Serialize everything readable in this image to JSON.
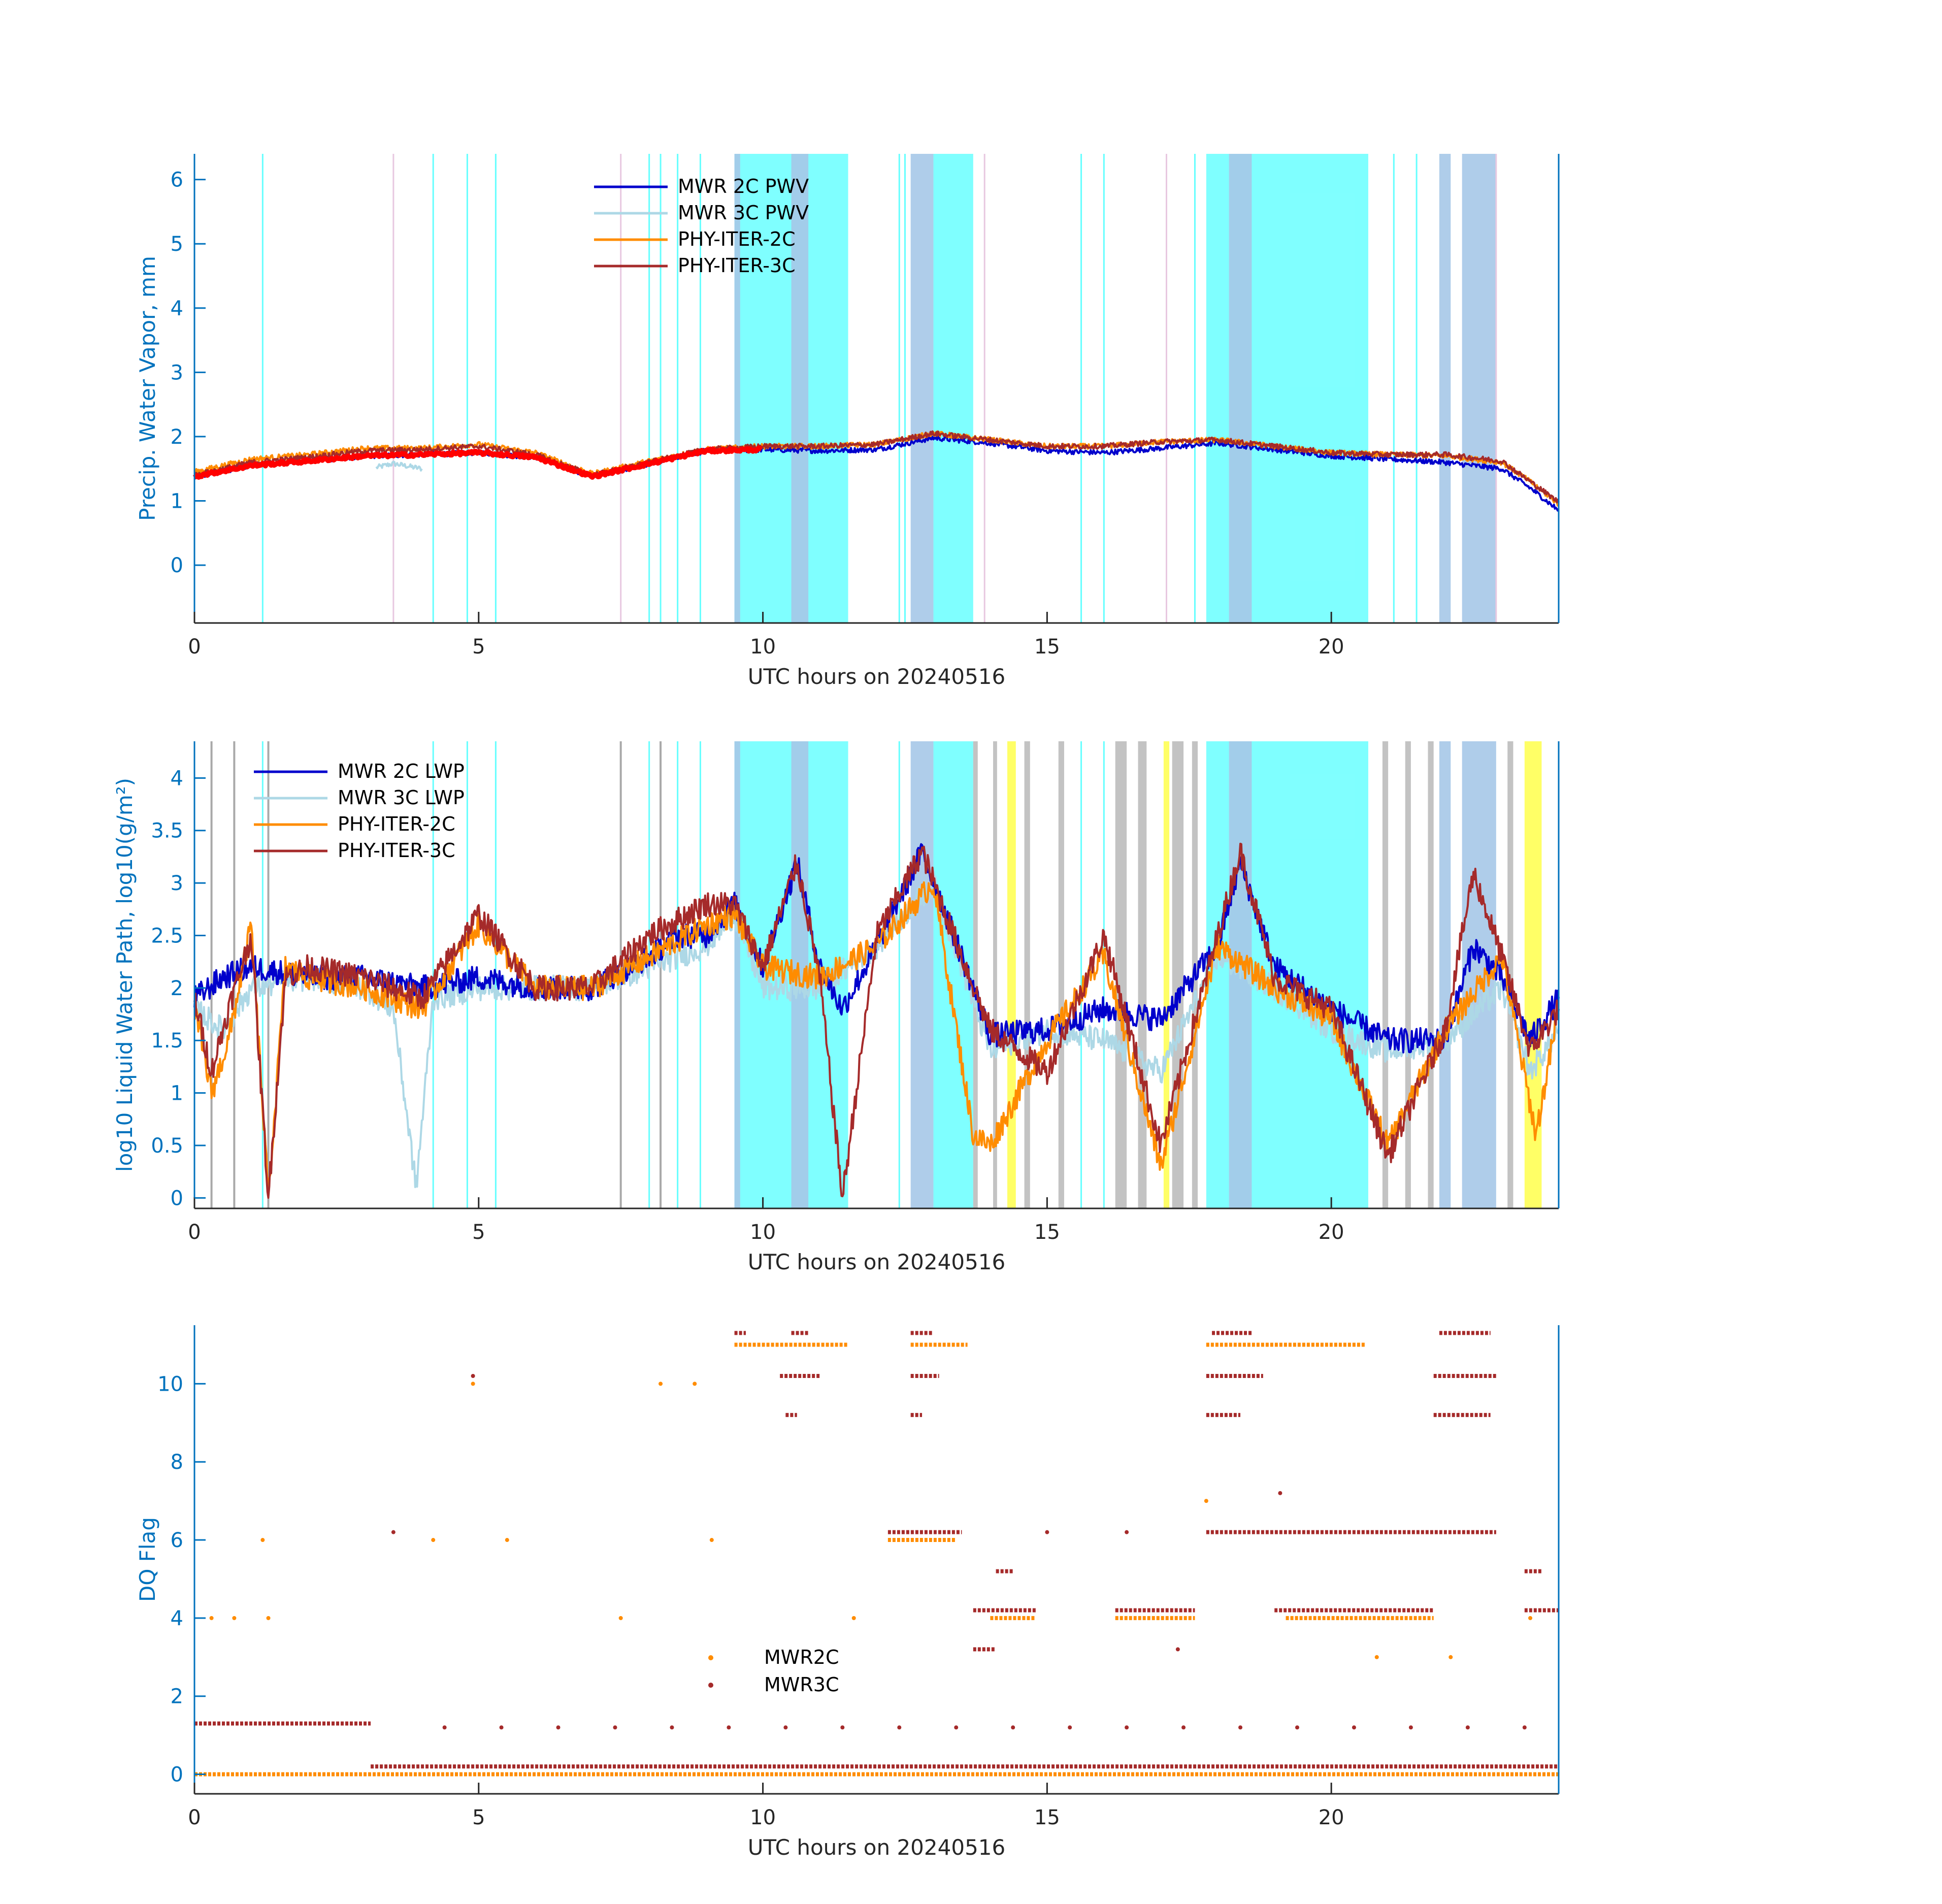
{
  "colors": {
    "axis": "#0072BD",
    "xaxis_text": "#262626",
    "mwr2c": "#0000CC",
    "mwr3c": "#ADD8E6",
    "phy2c": "#FF8C00",
    "phy3c": "#A52A2A",
    "pwv_red": "#FF0000",
    "cyan": "#00FFFF",
    "lightblue": "#A6C8E8",
    "gray": "#A9A9A9",
    "yellow": "#FFFF00",
    "pink": "#E8C8E0"
  },
  "chart_data": [
    {
      "type": "line",
      "xlabel": "UTC hours on 20240516",
      "ylabel": "Precip. Water Vapor, mm",
      "xlim": [
        0,
        24
      ],
      "ylim": [
        -0.9,
        6.4
      ],
      "xticks": [
        0,
        5,
        10,
        15,
        20
      ],
      "yticks": [
        0,
        1,
        2,
        3,
        4,
        5,
        6
      ],
      "legend_position": "top-center",
      "series": [
        {
          "name": "MWR 2C PWV",
          "color_key": "mwr2c",
          "x": [
            0,
            1,
            2,
            3,
            4,
            5,
            6,
            7,
            8,
            9,
            10,
            11,
            12,
            13,
            14,
            15,
            16,
            17,
            18,
            19,
            20,
            21,
            22,
            23,
            23.5,
            24
          ],
          "y": [
            1.38,
            1.55,
            1.62,
            1.7,
            1.72,
            1.75,
            1.68,
            1.38,
            1.58,
            1.78,
            1.8,
            1.78,
            1.8,
            1.98,
            1.9,
            1.78,
            1.75,
            1.82,
            1.9,
            1.8,
            1.7,
            1.65,
            1.6,
            1.5,
            1.2,
            0.85
          ]
        },
        {
          "name": "MWR 3C PWV",
          "color_key": "mwr3c",
          "x": [
            3.2,
            3.5,
            4.0
          ],
          "y": [
            1.52,
            1.58,
            1.5
          ]
        },
        {
          "name": "PHY-ITER-2C",
          "color_key": "phy2c",
          "x": [
            0,
            1,
            2,
            3,
            4,
            5,
            6,
            7,
            8,
            9,
            10,
            11,
            12,
            13,
            14,
            15,
            16,
            17,
            18,
            19,
            20,
            21,
            22,
            23,
            23.5,
            24
          ],
          "y": [
            1.45,
            1.65,
            1.72,
            1.82,
            1.82,
            1.88,
            1.75,
            1.42,
            1.62,
            1.8,
            1.85,
            1.85,
            1.88,
            2.05,
            1.95,
            1.85,
            1.85,
            1.92,
            1.95,
            1.85,
            1.75,
            1.72,
            1.7,
            1.6,
            1.3,
            0.95
          ]
        },
        {
          "name": "PHY-ITER-3C",
          "color_key": "phy3c",
          "x": [
            0,
            1,
            2,
            3,
            4,
            5,
            6,
            7,
            8,
            9,
            10,
            11,
            12,
            13,
            14,
            15,
            16,
            17,
            18,
            19,
            20,
            21,
            22,
            23,
            23.5,
            24
          ],
          "y": [
            1.4,
            1.6,
            1.68,
            1.78,
            1.8,
            1.85,
            1.72,
            1.4,
            1.6,
            1.8,
            1.85,
            1.85,
            1.88,
            2.05,
            1.95,
            1.85,
            1.85,
            1.92,
            1.95,
            1.85,
            1.75,
            1.72,
            1.72,
            1.62,
            1.3,
            0.98
          ]
        }
      ],
      "bands": {
        "cyan": [
          [
            9.5,
            11.5
          ],
          [
            13.0,
            13.7
          ],
          [
            17.8,
            20.65
          ]
        ],
        "lightblue": [
          [
            9.5,
            9.6
          ],
          [
            10.5,
            10.8
          ],
          [
            12.6,
            13.0
          ],
          [
            18.2,
            18.6
          ],
          [
            21.9,
            22.1
          ],
          [
            22.3,
            22.9
          ]
        ],
        "thin_cyan": [
          1.2,
          4.2,
          4.8,
          5.3,
          8.0,
          8.2,
          8.5,
          8.9,
          12.4,
          12.5,
          15.6,
          16.0,
          17.6,
          21.1,
          21.5
        ],
        "thin_pink": [
          3.5,
          7.5,
          13.9,
          17.1,
          22.9
        ]
      }
    },
    {
      "type": "line",
      "xlabel": "UTC hours on 20240516",
      "ylabel": "log10 Liquid Water Path, log10(g/m²)",
      "xlim": [
        0,
        24
      ],
      "ylim": [
        -0.1,
        4.35
      ],
      "xticks": [
        0,
        5,
        10,
        15,
        20
      ],
      "yticks": [
        0,
        0.5,
        1,
        1.5,
        2,
        2.5,
        3,
        3.5,
        4
      ],
      "ytick_labels": [
        "0",
        "0.5",
        "1",
        "1.5",
        "2",
        "2.5",
        "3",
        "3.5",
        "4"
      ],
      "legend_position": "top-left",
      "series": [
        {
          "name": "MWR 2C LWP",
          "color_key": "mwr2c",
          "x": [
            0,
            0.5,
            1,
            2,
            3,
            4,
            5,
            6,
            7,
            8,
            8.5,
            9,
            9.5,
            10,
            10.6,
            11,
            11.4,
            12,
            12.8,
            13.5,
            14,
            15,
            16,
            17,
            18,
            18.4,
            19,
            20,
            21,
            22,
            22.5,
            23,
            23.5,
            24
          ],
          "y": [
            1.9,
            2.1,
            2.2,
            2.1,
            2.1,
            2.0,
            2.1,
            2.0,
            2.0,
            2.3,
            2.5,
            2.5,
            2.8,
            2.2,
            3.2,
            2.2,
            1.8,
            2.4,
            3.3,
            2.3,
            1.55,
            1.6,
            1.8,
            1.7,
            2.4,
            3.2,
            2.2,
            1.8,
            1.5,
            1.5,
            2.4,
            2.1,
            1.5,
            1.9
          ]
        },
        {
          "name": "MWR 3C LWP",
          "color_key": "mwr3c",
          "x": [
            0,
            0.5,
            1,
            2,
            3,
            3.5,
            3.9,
            4.2,
            5,
            6,
            7,
            8,
            9,
            9.5,
            10,
            11,
            12,
            13,
            14,
            15,
            16,
            17,
            18,
            19,
            20,
            21,
            22,
            23,
            23.5,
            24
          ],
          "y": [
            1.8,
            1.6,
            2.0,
            2.1,
            2.0,
            1.8,
            0.1,
            1.9,
            2.0,
            2.0,
            2.0,
            2.2,
            2.4,
            2.7,
            2.0,
            2.0,
            2.4,
            3.0,
            1.4,
            1.6,
            1.5,
            1.2,
            2.3,
            2.0,
            1.6,
            1.4,
            1.5,
            2.0,
            1.2,
            1.6
          ]
        },
        {
          "name": "PHY-ITER-2C",
          "color_key": "phy2c",
          "x": [
            0,
            0.3,
            0.6,
            1.0,
            1.3,
            1.6,
            2,
            3,
            4,
            5,
            6,
            7,
            8,
            9,
            9.5,
            10,
            11,
            12,
            13,
            13.7,
            14,
            15,
            16,
            17,
            18,
            19,
            20,
            21,
            22,
            23,
            23.6,
            24
          ],
          "y": [
            1.8,
            1.0,
            1.5,
            2.6,
            0.0,
            2.2,
            2.1,
            2.0,
            1.8,
            2.6,
            2.0,
            2.0,
            2.3,
            2.6,
            2.7,
            2.2,
            2.1,
            2.4,
            3.0,
            0.6,
            0.5,
            1.5,
            2.3,
            0.3,
            2.4,
            2.0,
            1.7,
            0.5,
            1.6,
            2.3,
            0.6,
            1.8
          ]
        },
        {
          "name": "PHY-ITER-3C",
          "color_key": "phy3c",
          "x": [
            0,
            0.3,
            0.6,
            1.0,
            1.3,
            1.6,
            2,
            3,
            4,
            5,
            6,
            7,
            8,
            9,
            9.5,
            10,
            10.6,
            11,
            11.4,
            12,
            12.8,
            13.5,
            14,
            15,
            16,
            17,
            18,
            18.4,
            19,
            20,
            21,
            22,
            22.5,
            23,
            23.5,
            24
          ],
          "y": [
            1.9,
            1.2,
            1.8,
            2.5,
            0.0,
            2.1,
            2.2,
            2.1,
            1.9,
            2.7,
            2.0,
            2.0,
            2.5,
            2.8,
            2.8,
            2.2,
            3.2,
            2.1,
            0.0,
            2.5,
            3.3,
            2.3,
            1.6,
            1.2,
            2.5,
            0.5,
            2.5,
            3.3,
            2.1,
            1.8,
            0.4,
            1.6,
            3.1,
            2.3,
            1.4,
            1.8
          ]
        }
      ],
      "bands": {
        "cyan": [
          [
            9.5,
            11.5
          ],
          [
            13.0,
            13.7
          ],
          [
            17.8,
            20.65
          ]
        ],
        "lightblue": [
          [
            9.5,
            9.6
          ],
          [
            10.5,
            10.8
          ],
          [
            12.6,
            13.0
          ],
          [
            18.2,
            18.6
          ],
          [
            21.9,
            22.1
          ],
          [
            22.3,
            22.9
          ]
        ],
        "yellow": [
          [
            14.3,
            14.45
          ],
          [
            17.05,
            17.15
          ],
          [
            23.4,
            23.7
          ]
        ],
        "gray": [
          [
            13.7,
            13.78
          ],
          [
            14.05,
            14.12
          ],
          [
            14.6,
            14.7
          ],
          [
            15.2,
            15.3
          ],
          [
            16.2,
            16.4
          ],
          [
            16.6,
            16.75
          ],
          [
            17.2,
            17.4
          ],
          [
            17.55,
            17.65
          ],
          [
            20.9,
            21.0
          ],
          [
            21.3,
            21.4
          ],
          [
            21.7,
            21.8
          ],
          [
            23.1,
            23.2
          ]
        ],
        "thin_gray": [
          0.3,
          0.7,
          1.3,
          7.5,
          8.2
        ],
        "thin_cyan": [
          1.2,
          4.2,
          4.8,
          5.3,
          8.0,
          8.5,
          8.9,
          12.4,
          15.6,
          16.0
        ]
      }
    },
    {
      "type": "scatter",
      "xlabel": "UTC hours on 20240516",
      "ylabel": "DQ Flag",
      "xlim": [
        0,
        24
      ],
      "ylim": [
        -0.5,
        11.5
      ],
      "xticks": [
        0,
        5,
        10,
        15,
        20
      ],
      "yticks": [
        0,
        2,
        4,
        6,
        8,
        10
      ],
      "legend_position": "lower-center",
      "series": [
        {
          "name": "MWR2C",
          "color_key": "phy2c",
          "segments": [
            {
              "level": 0,
              "x0": 0.0,
              "x1": 24.0
            },
            {
              "level": 11,
              "x0": 9.5,
              "x1": 11.5
            },
            {
              "level": 11,
              "x0": 12.6,
              "x1": 13.6
            },
            {
              "level": 11,
              "x0": 17.8,
              "x1": 20.6
            },
            {
              "level": 4,
              "x0": 14.0,
              "x1": 14.8
            },
            {
              "level": 4,
              "x0": 16.2,
              "x1": 17.6
            },
            {
              "level": 4,
              "x0": 19.2,
              "x1": 21.8
            },
            {
              "level": 6,
              "x0": 12.2,
              "x1": 13.4
            }
          ],
          "points": [
            [
              0.3,
              4
            ],
            [
              0.7,
              4
            ],
            [
              1.3,
              4
            ],
            [
              1.2,
              6
            ],
            [
              4.2,
              6
            ],
            [
              4.9,
              10
            ],
            [
              5.5,
              6
            ],
            [
              7.5,
              4
            ],
            [
              8.2,
              10
            ],
            [
              8.8,
              10
            ],
            [
              9.1,
              6
            ],
            [
              11.6,
              4
            ],
            [
              17.8,
              7
            ],
            [
              20.8,
              3
            ],
            [
              22.1,
              3
            ],
            [
              23.5,
              4
            ]
          ]
        },
        {
          "name": "MWR3C",
          "color_key": "phy3c",
          "segments": [
            {
              "level": 1.3,
              "x0": 0.0,
              "x1": 3.1
            },
            {
              "level": 0.2,
              "x0": 3.1,
              "x1": 24.0
            },
            {
              "level": 11.3,
              "x0": 9.5,
              "x1": 9.7
            },
            {
              "level": 11.3,
              "x0": 10.5,
              "x1": 10.8
            },
            {
              "level": 11.3,
              "x0": 12.6,
              "x1": 13.0
            },
            {
              "level": 11.3,
              "x0": 17.9,
              "x1": 18.6
            },
            {
              "level": 11.3,
              "x0": 21.9,
              "x1": 22.8
            },
            {
              "level": 10.2,
              "x0": 10.3,
              "x1": 11.0
            },
            {
              "level": 10.2,
              "x0": 12.6,
              "x1": 13.1
            },
            {
              "level": 10.2,
              "x0": 17.8,
              "x1": 18.8
            },
            {
              "level": 10.2,
              "x0": 21.8,
              "x1": 22.9
            },
            {
              "level": 9.2,
              "x0": 10.4,
              "x1": 10.6
            },
            {
              "level": 9.2,
              "x0": 12.6,
              "x1": 12.8
            },
            {
              "level": 9.2,
              "x0": 17.8,
              "x1": 18.4
            },
            {
              "level": 9.2,
              "x0": 21.8,
              "x1": 22.8
            },
            {
              "level": 6.2,
              "x0": 12.2,
              "x1": 13.5
            },
            {
              "level": 6.2,
              "x0": 17.8,
              "x1": 22.9
            },
            {
              "level": 5.2,
              "x0": 14.1,
              "x1": 14.4
            },
            {
              "level": 5.2,
              "x0": 23.4,
              "x1": 23.7
            },
            {
              "level": 4.2,
              "x0": 13.7,
              "x1": 14.8
            },
            {
              "level": 4.2,
              "x0": 16.2,
              "x1": 17.6
            },
            {
              "level": 4.2,
              "x0": 19.0,
              "x1": 21.8
            },
            {
              "level": 4.2,
              "x0": 23.4,
              "x1": 24.0
            },
            {
              "level": 3.2,
              "x0": 13.7,
              "x1": 14.1
            }
          ],
          "points": [
            [
              3.5,
              6.2
            ],
            [
              4.4,
              1.2
            ],
            [
              4.9,
              10.2
            ],
            [
              5.4,
              1.2
            ],
            [
              6.4,
              1.2
            ],
            [
              7.4,
              1.2
            ],
            [
              8.4,
              1.2
            ],
            [
              9.4,
              1.2
            ],
            [
              10.4,
              1.2
            ],
            [
              11.4,
              1.2
            ],
            [
              12.4,
              1.2
            ],
            [
              13.4,
              1.2
            ],
            [
              14.4,
              1.2
            ],
            [
              15.4,
              1.2
            ],
            [
              16.4,
              1.2
            ],
            [
              17.4,
              1.2
            ],
            [
              18.4,
              1.2
            ],
            [
              19.1,
              7.2
            ],
            [
              19.4,
              1.2
            ],
            [
              20.4,
              1.2
            ],
            [
              21.4,
              1.2
            ],
            [
              22.4,
              1.2
            ],
            [
              23.4,
              1.2
            ],
            [
              15.0,
              6.2
            ],
            [
              16.4,
              6.2
            ],
            [
              17.3,
              3.2
            ]
          ]
        }
      ]
    }
  ]
}
